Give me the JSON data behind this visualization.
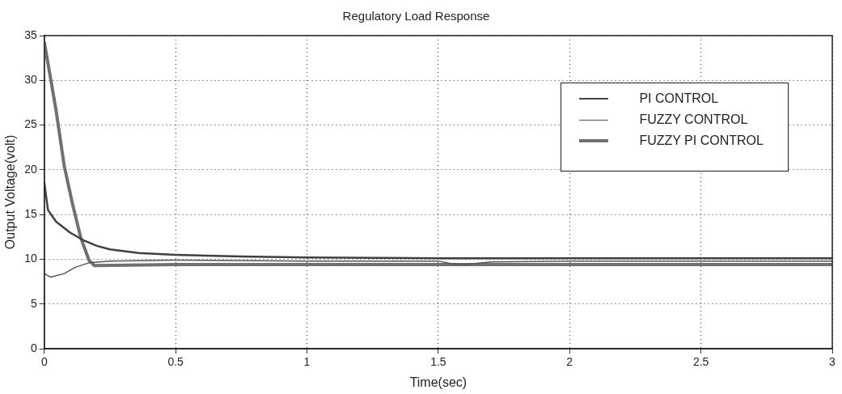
{
  "chart_data": {
    "type": "line",
    "title": "Regulatory Load Response",
    "xlabel": "Time(sec)",
    "ylabel": "Output Voltage(volt)",
    "xlim": [
      0,
      3
    ],
    "xticks": [
      0,
      0.5,
      1,
      1.5,
      2,
      2.5,
      3
    ],
    "ylim": [
      0,
      35
    ],
    "yticks": [
      0,
      5,
      10,
      15,
      20,
      25,
      30,
      35
    ],
    "grid": true,
    "legend": "top right",
    "marker": "none",
    "line_style": "solid",
    "series": [
      {
        "name": "PI CONTROL",
        "color": "#404040",
        "x": [
          0,
          0.014,
          0.045,
          0.097,
          0.15,
          0.2,
          0.25,
          0.36,
          0.5,
          0.75,
          1,
          1.5,
          2,
          2.5,
          3
        ],
        "values": [
          18.6,
          15.5,
          14.2,
          13,
          12.1,
          11.5,
          11.1,
          10.7,
          10.5,
          10.3,
          10.2,
          10.1,
          10.1,
          10.1,
          10.1
        ]
      },
      {
        "name": "FUZZY CONTROL",
        "color": "#555555",
        "x": [
          0,
          0.024,
          0.076,
          0.118,
          0.17,
          0.25,
          0.5,
          1,
          1.5,
          1.55,
          1.6,
          1.7,
          2,
          2.5,
          3
        ],
        "values": [
          8.4,
          8,
          8.4,
          9.1,
          9.6,
          9.8,
          9.9,
          9.8,
          9.8,
          9.5,
          9.4,
          9.7,
          9.8,
          9.8,
          9.8
        ]
      },
      {
        "name": "FUZZY PI CONTROL",
        "color": "#707070",
        "x": [
          0,
          0.045,
          0.076,
          0.108,
          0.139,
          0.17,
          0.19,
          0.5,
          1,
          1.5,
          2,
          2.5,
          3
        ],
        "values": [
          34.3,
          26.6,
          20.4,
          16.1,
          12.4,
          9.9,
          9.3,
          9.4,
          9.4,
          9.4,
          9.4,
          9.4,
          9.4
        ]
      }
    ]
  }
}
